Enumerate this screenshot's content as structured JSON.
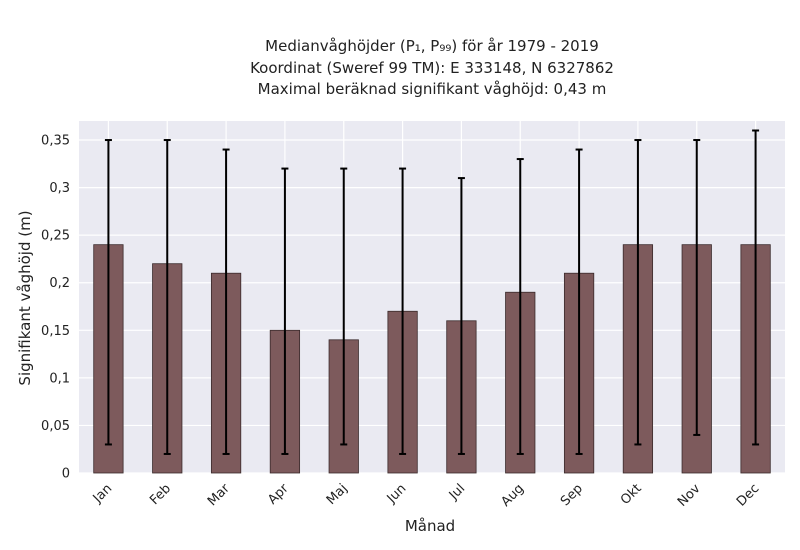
{
  "chart_data": {
    "type": "bar",
    "title_lines": [
      "Medianvåghöjder (P₁, P₉₉) för år 1979 - 2019",
      "Koordinat (Sweref 99 TM): E 333148, N 6327862",
      "Maximal beräknad signifikant våghöjd: 0,43 m"
    ],
    "xlabel": "Månad",
    "ylabel": "Signifikant våghöjd (m)",
    "categories": [
      "Jan",
      "Feb",
      "Mar",
      "Apr",
      "Maj",
      "Jun",
      "Jul",
      "Aug",
      "Sep",
      "Okt",
      "Nov",
      "Dec"
    ],
    "values": [
      0.24,
      0.22,
      0.21,
      0.15,
      0.14,
      0.17,
      0.16,
      0.19,
      0.21,
      0.24,
      0.24,
      0.24
    ],
    "p1": [
      0.03,
      0.02,
      0.02,
      0.02,
      0.03,
      0.02,
      0.02,
      0.02,
      0.02,
      0.03,
      0.04,
      0.03
    ],
    "p99": [
      0.35,
      0.35,
      0.34,
      0.32,
      0.32,
      0.32,
      0.31,
      0.33,
      0.34,
      0.35,
      0.35,
      0.36
    ],
    "yticks": [
      0,
      0.05,
      0.1,
      0.15,
      0.2,
      0.25,
      0.3,
      0.35
    ],
    "ytick_labels": [
      "0",
      "0,05",
      "0,1",
      "0,15",
      "0,2",
      "0,25",
      "0,3",
      "0,35"
    ],
    "ylim": [
      0,
      0.37
    ],
    "grid": true,
    "colors": {
      "bar": "#7d5a5c",
      "bar_edge": "#3a2a2b",
      "error_bar": "#000000",
      "plot_background": "#eaeaf2",
      "grid": "#ffffff"
    }
  }
}
